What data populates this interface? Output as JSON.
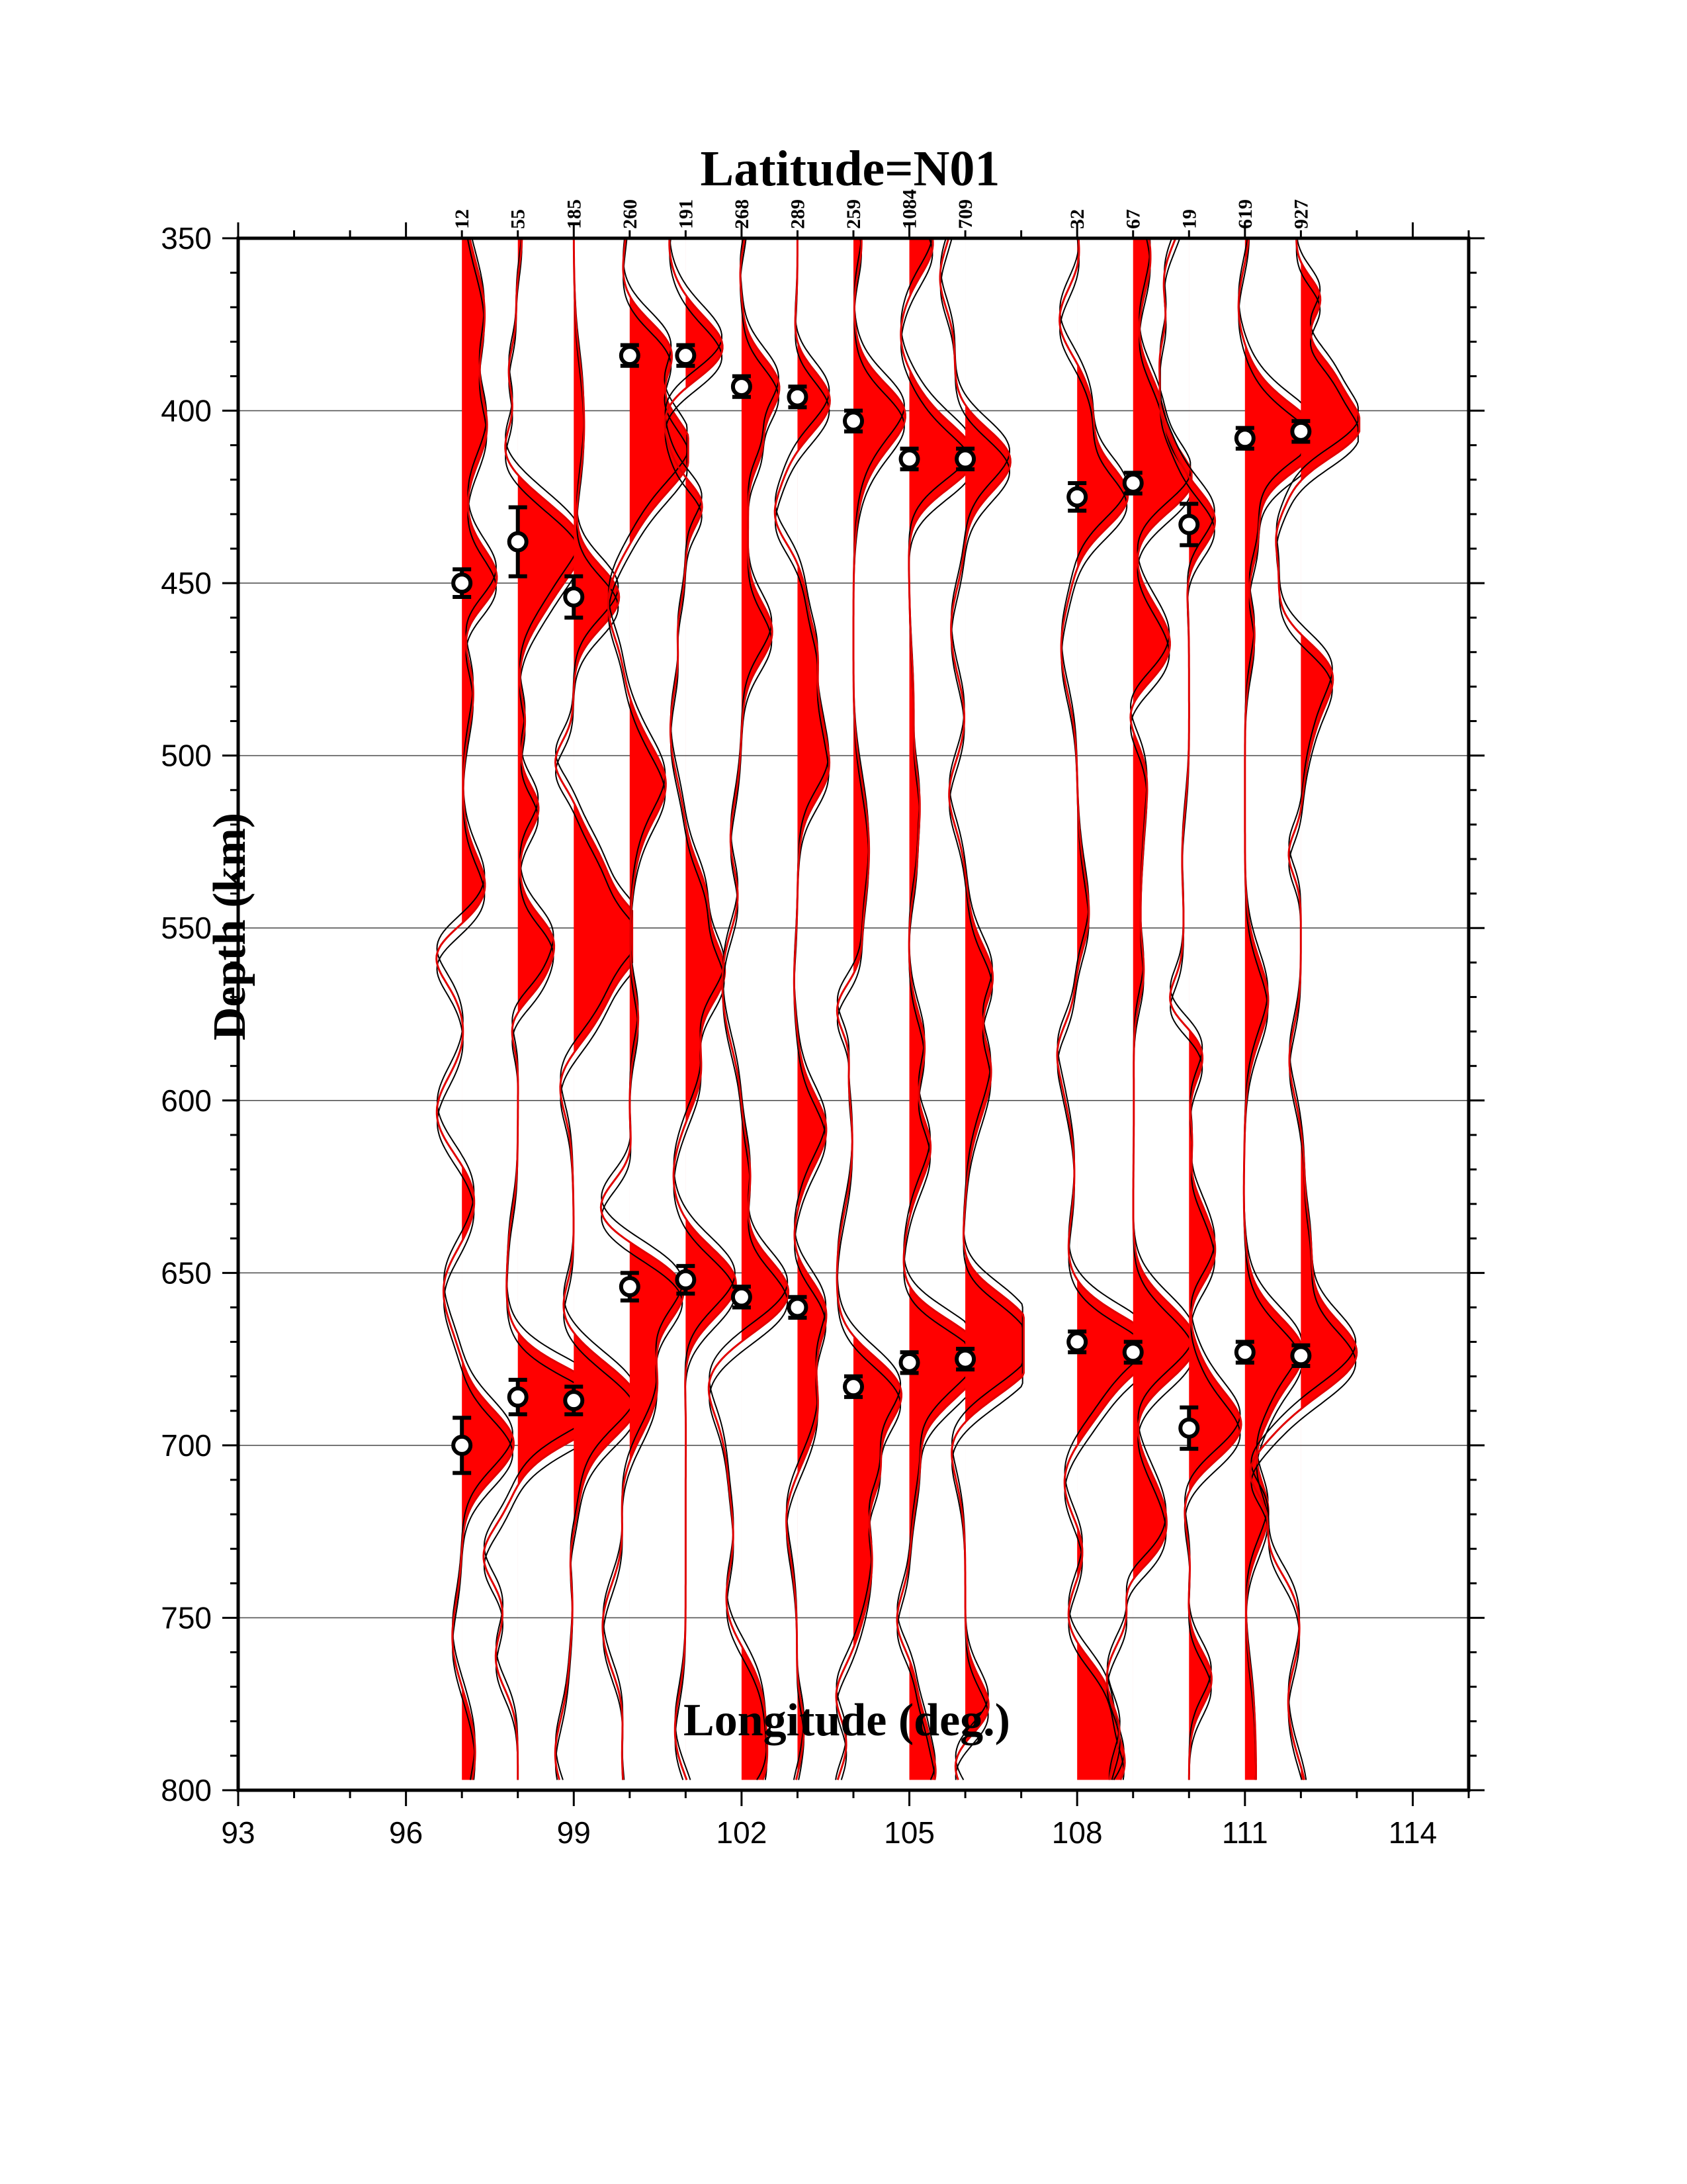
{
  "chart_data": {
    "type": "line",
    "title": "Latitude=N01",
    "xlabel": "Longitude (deg.)",
    "ylabel": "Depth (km)",
    "xlim": [
      93,
      115
    ],
    "ylim": [
      800,
      350
    ],
    "x_ticks": [
      93,
      96,
      99,
      102,
      105,
      108,
      111,
      114
    ],
    "y_ticks": [
      350,
      400,
      450,
      500,
      550,
      600,
      650,
      700,
      750,
      800
    ],
    "grid": "horizontal",
    "colors": {
      "trace_fill": "#ff0000",
      "trace_line": "#000000",
      "mean_line": "#e00000"
    },
    "stations": [
      {
        "x": 97,
        "count": "12",
        "d410": 450,
        "d410_err": 4,
        "d660": 700,
        "d660_err": 8
      },
      {
        "x": 98,
        "count": "55",
        "d410": 438,
        "d410_err": 10,
        "d660": 686,
        "d660_err": 5
      },
      {
        "x": 99,
        "count": "185",
        "d410": 454,
        "d410_err": 6,
        "d660": 687,
        "d660_err": 4
      },
      {
        "x": 100,
        "count": "260",
        "d410": 384,
        "d410_err": 3,
        "d660": 654,
        "d660_err": 4
      },
      {
        "x": 101,
        "count": "191",
        "d410": 384,
        "d410_err": 3,
        "d660": 652,
        "d660_err": 4
      },
      {
        "x": 102,
        "count": "268",
        "d410": 393,
        "d410_err": 3,
        "d660": 657,
        "d660_err": 3
      },
      {
        "x": 103,
        "count": "289",
        "d410": 396,
        "d410_err": 3,
        "d660": 660,
        "d660_err": 3
      },
      {
        "x": 104,
        "count": "259",
        "d410": 403,
        "d410_err": 3,
        "d660": 683,
        "d660_err": 3
      },
      {
        "x": 105,
        "count": "1084",
        "d410": 414,
        "d410_err": 3,
        "d660": 676,
        "d660_err": 3
      },
      {
        "x": 106,
        "count": "709",
        "d410": 414,
        "d410_err": 3,
        "d660": 675,
        "d660_err": 3
      },
      {
        "x": 108,
        "count": "32",
        "d410": 425,
        "d410_err": 4,
        "d660": 670,
        "d660_err": 3
      },
      {
        "x": 109,
        "count": "67",
        "d410": 421,
        "d410_err": 3,
        "d660": 673,
        "d660_err": 3
      },
      {
        "x": 110,
        "count": "19",
        "d410": 433,
        "d410_err": 6,
        "d660": 695,
        "d660_err": 6
      },
      {
        "x": 111,
        "count": "619",
        "d410": 408,
        "d410_err": 3,
        "d660": 673,
        "d660_err": 3
      },
      {
        "x": 112,
        "count": "927",
        "d410": 406,
        "d410_err": 3,
        "d660": 674,
        "d660_err": 3
      }
    ]
  }
}
